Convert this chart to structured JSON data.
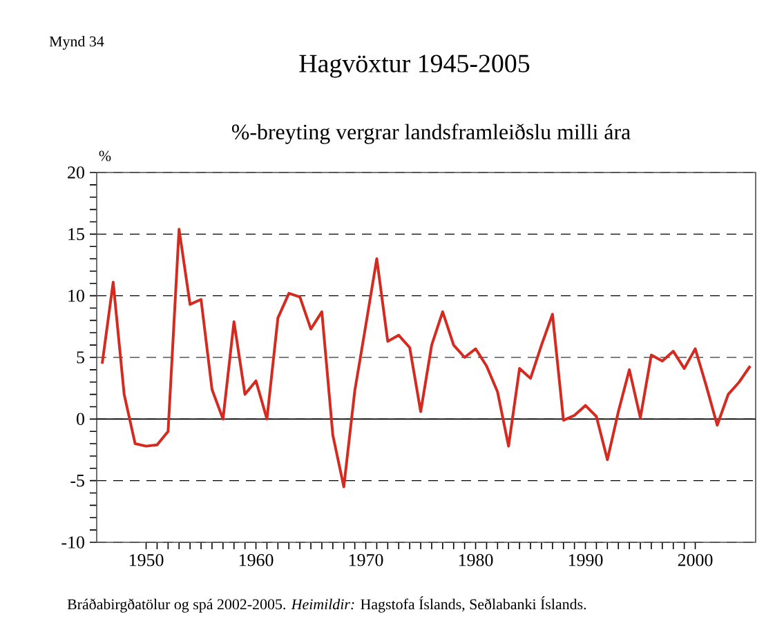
{
  "chart_data": {
    "type": "line",
    "title": "Hagvöxtur 1945-2005",
    "subtitle": "%-breyting vergrar landsframleiðslu milli ára",
    "ylabel": "%",
    "annotations": [
      "Mynd 34",
      "Bráðabirgðatölur og spá 2002-2005.  *Heimildir:* Hagstofa Íslands, Seðlabanki Íslands."
    ],
    "x": [
      1946,
      1947,
      1948,
      1949,
      1950,
      1951,
      1952,
      1953,
      1954,
      1955,
      1956,
      1957,
      1958,
      1959,
      1960,
      1961,
      1962,
      1963,
      1964,
      1965,
      1966,
      1967,
      1968,
      1969,
      1970,
      1971,
      1972,
      1973,
      1974,
      1975,
      1976,
      1977,
      1978,
      1979,
      1980,
      1981,
      1982,
      1983,
      1984,
      1985,
      1986,
      1987,
      1988,
      1989,
      1990,
      1991,
      1992,
      1993,
      1994,
      1995,
      1996,
      1997,
      1998,
      1999,
      2000,
      2001,
      2002,
      2003,
      2004,
      2005
    ],
    "series": [
      {
        "color": "#d42a20",
        "values": [
          4.5,
          11.1,
          2.0,
          -2.0,
          -2.2,
          -2.1,
          -1.0,
          15.4,
          9.3,
          9.7,
          2.4,
          0,
          7.9,
          2.0,
          3.1,
          0,
          8.2,
          10.2,
          9.9,
          7.3,
          8.7,
          -1.3,
          -5.5,
          2.3,
          7.6,
          13.0,
          6.3,
          6.8,
          5.8,
          0.6,
          6.0,
          8.7,
          6.0,
          5.0,
          5.7,
          4.3,
          2.2,
          -2.2,
          4.1,
          3.3,
          6.0,
          8.5,
          -0.1,
          0.3,
          1.1,
          0.2,
          -3.3,
          0.6,
          4.0,
          0.1,
          5.2,
          4.7,
          5.5,
          4.1,
          5.7,
          2.7,
          -0.5,
          2.0,
          3.0,
          4.3
        ]
      }
    ],
    "xlim": [
      1945.5,
      2005.5
    ],
    "xticks": [
      1950,
      1960,
      1970,
      1980,
      1990,
      2000
    ],
    "ylim": [
      -10,
      20
    ],
    "yticks": [
      -10,
      -5,
      0,
      5,
      10,
      15,
      20
    ],
    "grid": "y",
    "line_style": "solid",
    "ref_lines": [
      {
        "axis": "y",
        "value": 0,
        "line_style": "solid",
        "color": "#000000"
      }
    ]
  }
}
